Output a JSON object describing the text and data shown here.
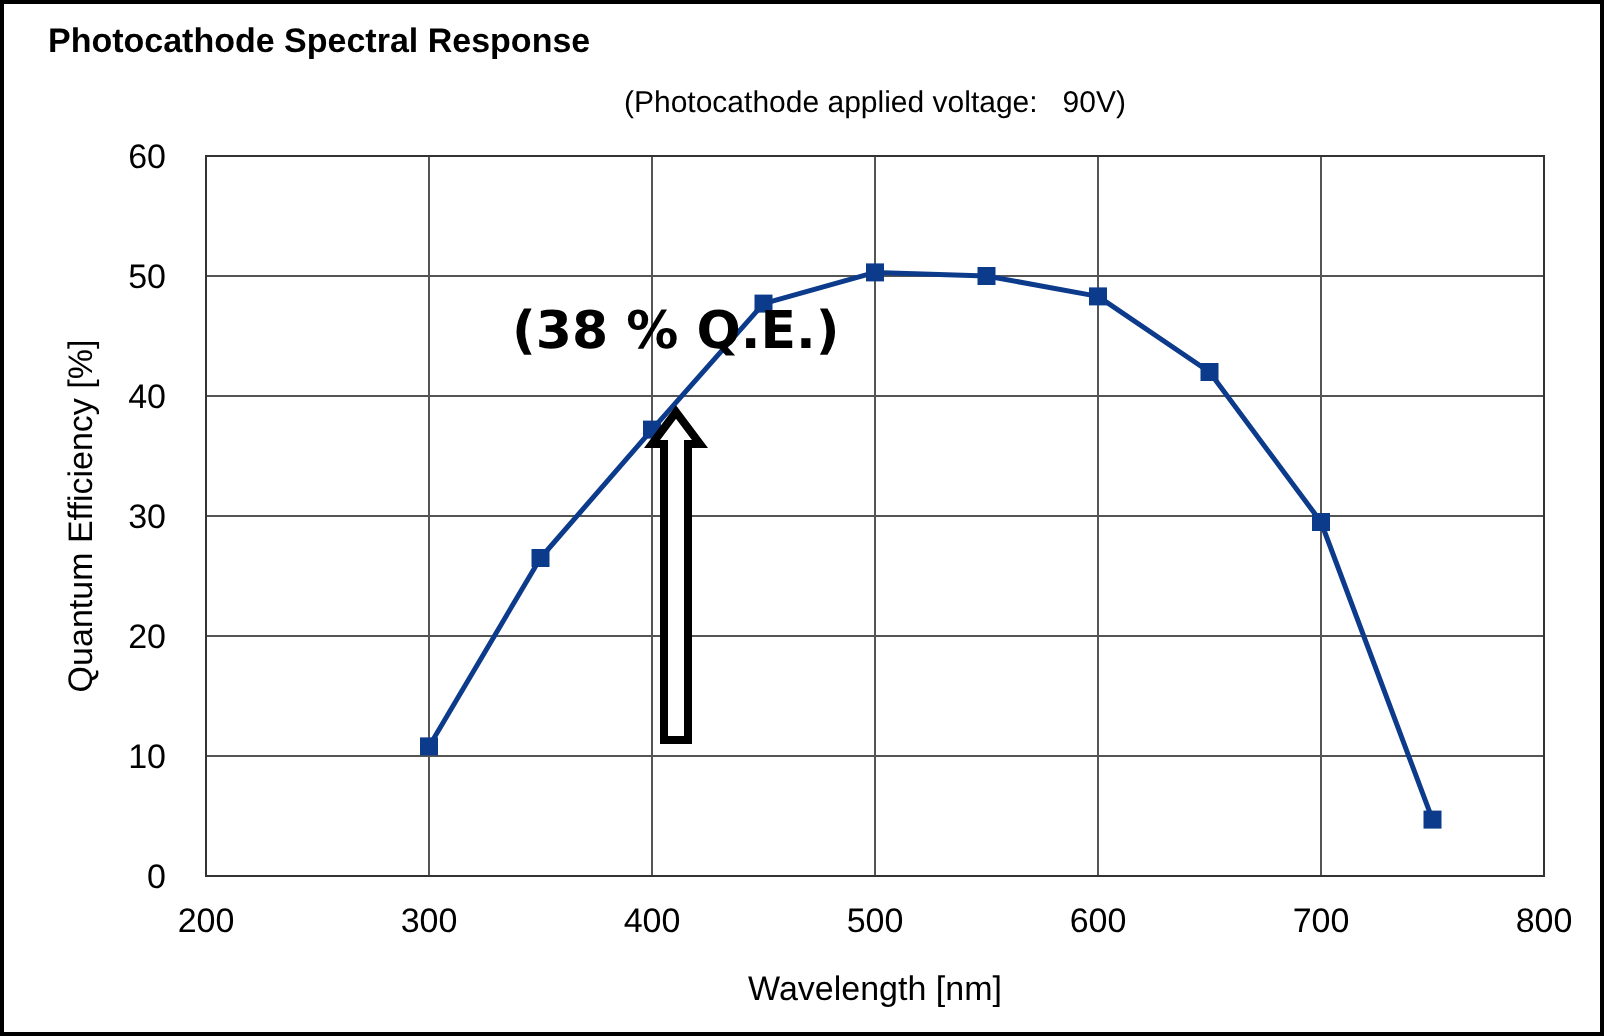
{
  "chart_data": {
    "type": "line",
    "title": "Photocathode Spectral Response",
    "subtitle": "(Photocathode applied voltage:   90V)",
    "xlabel": "Wavelength [nm]",
    "ylabel": "Quantum Efficiency [%]",
    "x": [
      300,
      350,
      400,
      450,
      500,
      550,
      600,
      650,
      700,
      750
    ],
    "series": [
      {
        "color": "#0d3b8c",
        "values": [
          10.8,
          26.5,
          37.2,
          47.7,
          50.3,
          50,
          48.3,
          42,
          29.5,
          4.7
        ]
      }
    ],
    "xlim": [
      200,
      800
    ],
    "xticks": [
      200,
      300,
      400,
      500,
      600,
      700,
      800
    ],
    "ylim": [
      0,
      60
    ],
    "yticks": [
      0,
      10,
      20,
      30,
      40,
      50,
      60
    ],
    "grid": true,
    "marker": "square",
    "line_style": "solid",
    "annotations": [
      {
        "text": "(38 % Q.E.)",
        "x": 400,
        "y": 38
      }
    ]
  }
}
